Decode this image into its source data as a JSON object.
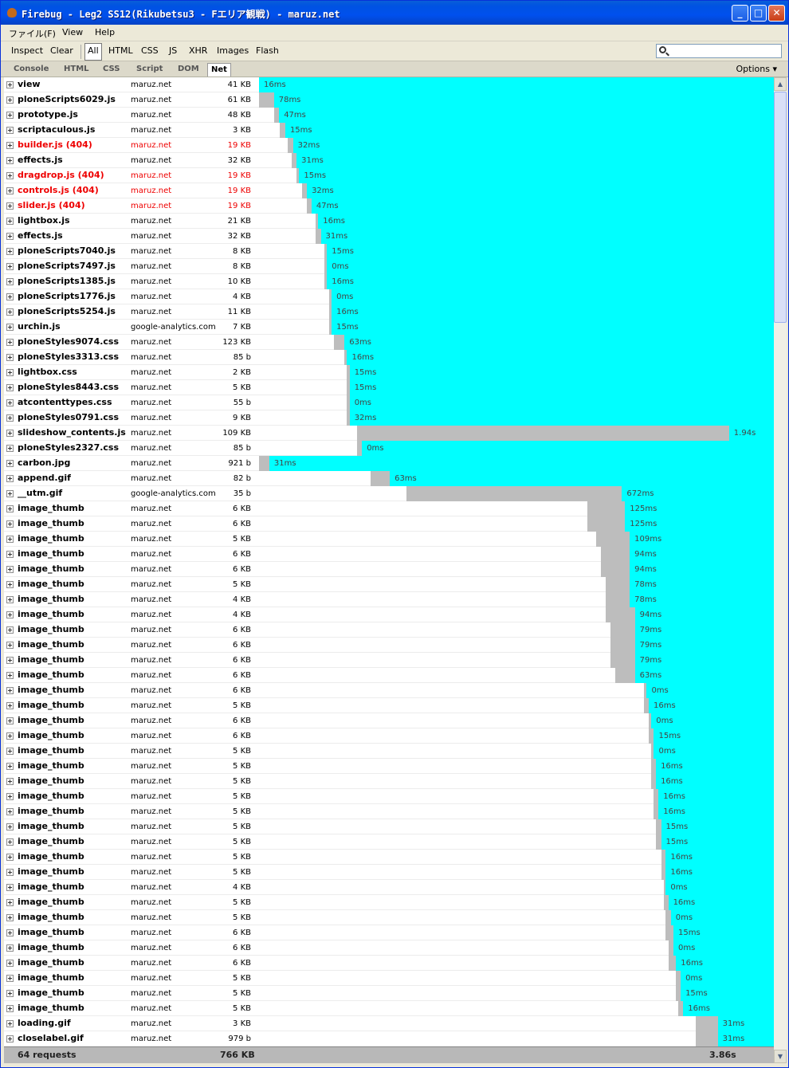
{
  "window": {
    "title": "Firebug - Leg2 SS12(Rikubetsu3 - Fエリア観戦) - maruz.net"
  },
  "menu": [
    "ファイル(F)",
    "View",
    "Help"
  ],
  "toolbar": {
    "inspect": "Inspect",
    "clear": "Clear",
    "filters": [
      "All",
      "HTML",
      "CSS",
      "JS",
      "XHR",
      "Images",
      "Flash"
    ],
    "search_value": ""
  },
  "tabs": [
    "Console",
    "HTML",
    "CSS",
    "Script",
    "DOM",
    "Net"
  ],
  "options_label": "Options",
  "requests": [
    {
      "name": "view",
      "domain": "maruz.net",
      "size": "41 KB",
      "err": false,
      "wait": [
        0,
        0
      ],
      "recv": [
        0,
        1
      ],
      "time": "16ms"
    },
    {
      "name": "ploneScripts6029.js",
      "domain": "maruz.net",
      "size": "61 KB",
      "err": false,
      "wait": [
        0,
        0.029
      ],
      "recv": [
        0.029,
        1
      ],
      "time": "78ms"
    },
    {
      "name": "prototype.js",
      "domain": "maruz.net",
      "size": "48 KB",
      "err": false,
      "wait": [
        0.029,
        0.039
      ],
      "recv": [
        0.039,
        1
      ],
      "time": "47ms"
    },
    {
      "name": "scriptaculous.js",
      "domain": "maruz.net",
      "size": "3 KB",
      "err": false,
      "wait": [
        0.041,
        0.051
      ],
      "recv": [
        0.051,
        1
      ],
      "time": "15ms"
    },
    {
      "name": "builder.js (404)",
      "domain": "maruz.net",
      "size": "19 KB",
      "err": true,
      "wait": [
        0.056,
        0.066
      ],
      "recv": [
        0.066,
        1
      ],
      "time": "32ms"
    },
    {
      "name": "effects.js",
      "domain": "maruz.net",
      "size": "32 KB",
      "err": false,
      "wait": [
        0.063,
        0.073
      ],
      "recv": [
        0.073,
        1
      ],
      "time": "31ms"
    },
    {
      "name": "dragdrop.js (404)",
      "domain": "maruz.net",
      "size": "19 KB",
      "err": true,
      "wait": [
        0.073,
        0.078
      ],
      "recv": [
        0.078,
        1
      ],
      "time": "15ms"
    },
    {
      "name": "controls.js (404)",
      "domain": "maruz.net",
      "size": "19 KB",
      "err": true,
      "wait": [
        0.083,
        0.093
      ],
      "recv": [
        0.093,
        1
      ],
      "time": "32ms"
    },
    {
      "name": "slider.js (404)",
      "domain": "maruz.net",
      "size": "19 KB",
      "err": true,
      "wait": [
        0.093,
        0.102
      ],
      "recv": [
        0.102,
        1
      ],
      "time": "47ms"
    },
    {
      "name": "lightbox.js",
      "domain": "maruz.net",
      "size": "21 KB",
      "err": false,
      "wait": [
        0.11,
        0.115
      ],
      "recv": [
        0.115,
        1
      ],
      "time": "16ms"
    },
    {
      "name": "effects.js",
      "domain": "maruz.net",
      "size": "32 KB",
      "err": false,
      "wait": [
        0.11,
        0.12
      ],
      "recv": [
        0.12,
        1
      ],
      "time": "31ms"
    },
    {
      "name": "ploneScripts7040.js",
      "domain": "maruz.net",
      "size": "8 KB",
      "err": false,
      "wait": [
        0.127,
        0.132
      ],
      "recv": [
        0.132,
        1
      ],
      "time": "15ms"
    },
    {
      "name": "ploneScripts7497.js",
      "domain": "maruz.net",
      "size": "8 KB",
      "err": false,
      "wait": [
        0.127,
        0.132
      ],
      "recv": [
        0.132,
        1
      ],
      "time": "0ms"
    },
    {
      "name": "ploneScripts1385.js",
      "domain": "maruz.net",
      "size": "10 KB",
      "err": false,
      "wait": [
        0.127,
        0.132
      ],
      "recv": [
        0.132,
        1
      ],
      "time": "16ms"
    },
    {
      "name": "ploneScripts1776.js",
      "domain": "maruz.net",
      "size": "4 KB",
      "err": false,
      "wait": [
        0.136,
        0.141
      ],
      "recv": [
        0.141,
        1
      ],
      "time": "0ms"
    },
    {
      "name": "ploneScripts5254.js",
      "domain": "maruz.net",
      "size": "11 KB",
      "err": false,
      "wait": [
        0.136,
        0.141
      ],
      "recv": [
        0.141,
        1
      ],
      "time": "16ms"
    },
    {
      "name": "urchin.js",
      "domain": "google-analytics.com",
      "size": "7 KB",
      "err": false,
      "wait": [
        0.136,
        0.141
      ],
      "recv": [
        0.141,
        1
      ],
      "time": "15ms"
    },
    {
      "name": "ploneStyles9074.css",
      "domain": "maruz.net",
      "size": "123 KB",
      "err": false,
      "wait": [
        0.146,
        0.166
      ],
      "recv": [
        0.166,
        1
      ],
      "time": "63ms"
    },
    {
      "name": "ploneStyles3313.css",
      "domain": "maruz.net",
      "size": "85 b",
      "err": false,
      "wait": [
        0.166,
        0.171
      ],
      "recv": [
        0.171,
        1
      ],
      "time": "16ms"
    },
    {
      "name": "lightbox.css",
      "domain": "maruz.net",
      "size": "2 KB",
      "err": false,
      "wait": [
        0.171,
        0.176
      ],
      "recv": [
        0.176,
        1
      ],
      "time": "15ms"
    },
    {
      "name": "ploneStyles8443.css",
      "domain": "maruz.net",
      "size": "5 KB",
      "err": false,
      "wait": [
        0.171,
        0.176
      ],
      "recv": [
        0.176,
        1
      ],
      "time": "15ms"
    },
    {
      "name": "atcontenttypes.css",
      "domain": "maruz.net",
      "size": "55 b",
      "err": false,
      "wait": [
        0.171,
        0.176
      ],
      "recv": [
        0.176,
        1
      ],
      "time": "0ms"
    },
    {
      "name": "ploneStyles0791.css",
      "domain": "maruz.net",
      "size": "9 KB",
      "err": false,
      "wait": [
        0.171,
        0.176
      ],
      "recv": [
        0.176,
        1
      ],
      "time": "32ms"
    },
    {
      "name": "slideshow_contents.js",
      "domain": "maruz.net",
      "size": "109 KB",
      "err": false,
      "wait": [
        0.19,
        0.913
      ],
      "recv": [
        0.913,
        1
      ],
      "time": "1.94s"
    },
    {
      "name": "ploneStyles2327.css",
      "domain": "maruz.net",
      "size": "85 b",
      "err": false,
      "wait": [
        0.19,
        0.2
      ],
      "recv": [
        0.2,
        1
      ],
      "time": "0ms"
    },
    {
      "name": "carbon.jpg",
      "domain": "maruz.net",
      "size": "921 b",
      "err": false,
      "wait": [
        0,
        0.02
      ],
      "recv": [
        0.02,
        1
      ],
      "time": "31ms"
    },
    {
      "name": "append.gif",
      "domain": "maruz.net",
      "size": "82 b",
      "err": false,
      "wait": [
        0.217,
        0.254
      ],
      "recv": [
        0.254,
        1
      ],
      "time": "63ms"
    },
    {
      "name": "__utm.gif",
      "domain": "google-analytics.com",
      "size": "35 b",
      "err": false,
      "wait": [
        0.286,
        0.705
      ],
      "recv": [
        0.705,
        1
      ],
      "time": "672ms"
    },
    {
      "name": "image_thumb",
      "domain": "maruz.net",
      "size": "6 KB",
      "err": false,
      "wait": [
        0.637,
        0.711
      ],
      "recv": [
        0.711,
        1
      ],
      "time": "125ms"
    },
    {
      "name": "image_thumb",
      "domain": "maruz.net",
      "size": "6 KB",
      "err": false,
      "wait": [
        0.637,
        0.711
      ],
      "recv": [
        0.711,
        1
      ],
      "time": "125ms"
    },
    {
      "name": "image_thumb",
      "domain": "maruz.net",
      "size": "5 KB",
      "err": false,
      "wait": [
        0.655,
        0.72
      ],
      "recv": [
        0.72,
        1
      ],
      "time": "109ms"
    },
    {
      "name": "image_thumb",
      "domain": "maruz.net",
      "size": "6 KB",
      "err": false,
      "wait": [
        0.664,
        0.72
      ],
      "recv": [
        0.72,
        1
      ],
      "time": "94ms"
    },
    {
      "name": "image_thumb",
      "domain": "maruz.net",
      "size": "6 KB",
      "err": false,
      "wait": [
        0.664,
        0.72
      ],
      "recv": [
        0.72,
        1
      ],
      "time": "94ms"
    },
    {
      "name": "image_thumb",
      "domain": "maruz.net",
      "size": "5 KB",
      "err": false,
      "wait": [
        0.673,
        0.72
      ],
      "recv": [
        0.72,
        1
      ],
      "time": "78ms"
    },
    {
      "name": "image_thumb",
      "domain": "maruz.net",
      "size": "4 KB",
      "err": false,
      "wait": [
        0.673,
        0.72
      ],
      "recv": [
        0.72,
        1
      ],
      "time": "78ms"
    },
    {
      "name": "image_thumb",
      "domain": "maruz.net",
      "size": "4 KB",
      "err": false,
      "wait": [
        0.673,
        0.73
      ],
      "recv": [
        0.73,
        1
      ],
      "time": "94ms"
    },
    {
      "name": "image_thumb",
      "domain": "maruz.net",
      "size": "6 KB",
      "err": false,
      "wait": [
        0.683,
        0.73
      ],
      "recv": [
        0.73,
        1
      ],
      "time": "79ms"
    },
    {
      "name": "image_thumb",
      "domain": "maruz.net",
      "size": "6 KB",
      "err": false,
      "wait": [
        0.683,
        0.73
      ],
      "recv": [
        0.73,
        1
      ],
      "time": "79ms"
    },
    {
      "name": "image_thumb",
      "domain": "maruz.net",
      "size": "6 KB",
      "err": false,
      "wait": [
        0.683,
        0.73
      ],
      "recv": [
        0.73,
        1
      ],
      "time": "79ms"
    },
    {
      "name": "image_thumb",
      "domain": "maruz.net",
      "size": "6 KB",
      "err": false,
      "wait": [
        0.692,
        0.73
      ],
      "recv": [
        0.73,
        1
      ],
      "time": "63ms"
    },
    {
      "name": "image_thumb",
      "domain": "maruz.net",
      "size": "6 KB",
      "err": false,
      "wait": [
        0.748,
        0.753
      ],
      "recv": [
        0.753,
        1
      ],
      "time": "0ms"
    },
    {
      "name": "image_thumb",
      "domain": "maruz.net",
      "size": "5 KB",
      "err": false,
      "wait": [
        0.748,
        0.757
      ],
      "recv": [
        0.757,
        1
      ],
      "time": "16ms"
    },
    {
      "name": "image_thumb",
      "domain": "maruz.net",
      "size": "6 KB",
      "err": false,
      "wait": [
        0.757,
        0.762
      ],
      "recv": [
        0.762,
        1
      ],
      "time": "0ms"
    },
    {
      "name": "image_thumb",
      "domain": "maruz.net",
      "size": "6 KB",
      "err": false,
      "wait": [
        0.757,
        0.767
      ],
      "recv": [
        0.767,
        1
      ],
      "time": "15ms"
    },
    {
      "name": "image_thumb",
      "domain": "maruz.net",
      "size": "5 KB",
      "err": false,
      "wait": [
        0.762,
        0.767
      ],
      "recv": [
        0.767,
        1
      ],
      "time": "0ms"
    },
    {
      "name": "image_thumb",
      "domain": "maruz.net",
      "size": "5 KB",
      "err": false,
      "wait": [
        0.762,
        0.771
      ],
      "recv": [
        0.771,
        1
      ],
      "time": "16ms"
    },
    {
      "name": "image_thumb",
      "domain": "maruz.net",
      "size": "5 KB",
      "err": false,
      "wait": [
        0.762,
        0.771
      ],
      "recv": [
        0.771,
        1
      ],
      "time": "16ms"
    },
    {
      "name": "image_thumb",
      "domain": "maruz.net",
      "size": "5 KB",
      "err": false,
      "wait": [
        0.767,
        0.776
      ],
      "recv": [
        0.776,
        1
      ],
      "time": "16ms"
    },
    {
      "name": "image_thumb",
      "domain": "maruz.net",
      "size": "5 KB",
      "err": false,
      "wait": [
        0.767,
        0.776
      ],
      "recv": [
        0.776,
        1
      ],
      "time": "16ms"
    },
    {
      "name": "image_thumb",
      "domain": "maruz.net",
      "size": "5 KB",
      "err": false,
      "wait": [
        0.771,
        0.781
      ],
      "recv": [
        0.781,
        1
      ],
      "time": "15ms"
    },
    {
      "name": "image_thumb",
      "domain": "maruz.net",
      "size": "5 KB",
      "err": false,
      "wait": [
        0.771,
        0.781
      ],
      "recv": [
        0.781,
        1
      ],
      "time": "15ms"
    },
    {
      "name": "image_thumb",
      "domain": "maruz.net",
      "size": "5 KB",
      "err": false,
      "wait": [
        0.781,
        0.79
      ],
      "recv": [
        0.79,
        1
      ],
      "time": "16ms"
    },
    {
      "name": "image_thumb",
      "domain": "maruz.net",
      "size": "5 KB",
      "err": false,
      "wait": [
        0.781,
        0.79
      ],
      "recv": [
        0.79,
        1
      ],
      "time": "16ms"
    },
    {
      "name": "image_thumb",
      "domain": "maruz.net",
      "size": "4 KB",
      "err": false,
      "wait": [
        0.786,
        0.79
      ],
      "recv": [
        0.79,
        1
      ],
      "time": "0ms"
    },
    {
      "name": "image_thumb",
      "domain": "maruz.net",
      "size": "5 KB",
      "err": false,
      "wait": [
        0.786,
        0.795
      ],
      "recv": [
        0.795,
        1
      ],
      "time": "16ms"
    },
    {
      "name": "image_thumb",
      "domain": "maruz.net",
      "size": "5 KB",
      "err": false,
      "wait": [
        0.79,
        0.8
      ],
      "recv": [
        0.8,
        1
      ],
      "time": "0ms"
    },
    {
      "name": "image_thumb",
      "domain": "maruz.net",
      "size": "6 KB",
      "err": false,
      "wait": [
        0.79,
        0.805
      ],
      "recv": [
        0.805,
        1
      ],
      "time": "15ms"
    },
    {
      "name": "image_thumb",
      "domain": "maruz.net",
      "size": "6 KB",
      "err": false,
      "wait": [
        0.795,
        0.805
      ],
      "recv": [
        0.805,
        1
      ],
      "time": "0ms"
    },
    {
      "name": "image_thumb",
      "domain": "maruz.net",
      "size": "6 KB",
      "err": false,
      "wait": [
        0.795,
        0.81
      ],
      "recv": [
        0.81,
        1
      ],
      "time": "16ms"
    },
    {
      "name": "image_thumb",
      "domain": "maruz.net",
      "size": "5 KB",
      "err": false,
      "wait": [
        0.81,
        0.819
      ],
      "recv": [
        0.819,
        1
      ],
      "time": "0ms"
    },
    {
      "name": "image_thumb",
      "domain": "maruz.net",
      "size": "5 KB",
      "err": false,
      "wait": [
        0.81,
        0.819
      ],
      "recv": [
        0.819,
        1
      ],
      "time": "15ms"
    },
    {
      "name": "image_thumb",
      "domain": "maruz.net",
      "size": "5 KB",
      "err": false,
      "wait": [
        0.815,
        0.824
      ],
      "recv": [
        0.824,
        1
      ],
      "time": "16ms"
    },
    {
      "name": "loading.gif",
      "domain": "maruz.net",
      "size": "3 KB",
      "err": false,
      "wait": [
        0.849,
        0.891
      ],
      "recv": [
        0.891,
        1
      ],
      "time": "31ms"
    },
    {
      "name": "closelabel.gif",
      "domain": "maruz.net",
      "size": "979 b",
      "err": false,
      "wait": [
        0.849,
        0.891
      ],
      "recv": [
        0.891,
        1
      ],
      "time": "31ms"
    }
  ],
  "summary": {
    "requests": "64 requests",
    "total_size": "766 KB",
    "total_time": "3.86s"
  },
  "colors": {
    "receiving": "#00ffff",
    "waiting": "#bdbdbd",
    "error_text": "#ee0000",
    "title_bar": "#0053e1"
  }
}
